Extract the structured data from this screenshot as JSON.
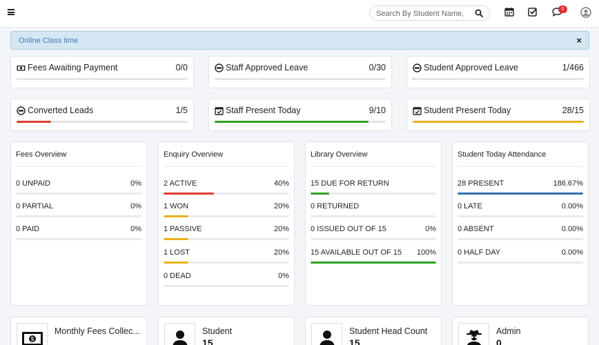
{
  "header": {
    "menu_icon": "hamburger-icon",
    "search_placeholder": "Search By Student Name,",
    "notification_count": "0",
    "icons": [
      "calendar-icon",
      "checkbox-icon",
      "chat-icon",
      "user-avatar-icon"
    ]
  },
  "alert": {
    "text": "Online Class time",
    "close": "×"
  },
  "stats": [
    {
      "label": "Fees Awaiting Payment",
      "value": "0/0",
      "icon": "money-icon",
      "progress": 0,
      "color": "#dd3b32"
    },
    {
      "label": "Staff Approved Leave",
      "value": "0/30",
      "icon": "leave-icon",
      "progress": 0,
      "color": "#2da11f"
    },
    {
      "label": "Student Approved Leave",
      "value": "1/466",
      "icon": "leave-icon",
      "progress": 0.002,
      "color": "#999999"
    },
    {
      "label": "Converted Leads",
      "value": "1/5",
      "icon": "leads-icon",
      "progress": 0.2,
      "color": "#dd3b32"
    },
    {
      "label": "Staff Present Today",
      "value": "9/10",
      "icon": "calendar-check-icon",
      "progress": 0.9,
      "color": "#2da11f"
    },
    {
      "label": "Student Present Today",
      "value": "28/15",
      "icon": "calendar-check-icon",
      "progress": 1.0,
      "color": "#e8b21c"
    }
  ],
  "panels": [
    {
      "title": "Fees Overview",
      "rows": [
        {
          "label": "0 UNPAID",
          "value": "0%",
          "progress": 0,
          "color": "#dd3b32"
        },
        {
          "label": "0 PARTIAL",
          "value": "0%",
          "progress": 0,
          "color": "#e8b21c"
        },
        {
          "label": "0 PAID",
          "value": "0%",
          "progress": 0,
          "color": "#2da11f"
        }
      ]
    },
    {
      "title": "Enquiry Overview",
      "rows": [
        {
          "label": "2 ACTIVE",
          "value": "40%",
          "progress": 0.4,
          "color": "#dd3b32"
        },
        {
          "label": "1 WON",
          "value": "20%",
          "progress": 0.2,
          "color": "#e8b21c"
        },
        {
          "label": "1 PASSIVE",
          "value": "20%",
          "progress": 0.2,
          "color": "#e8b21c"
        },
        {
          "label": "1 LOST",
          "value": "20%",
          "progress": 0.2,
          "color": "#e8b21c"
        },
        {
          "label": "0 DEAD",
          "value": "0%",
          "progress": 0,
          "color": "#e8b21c"
        }
      ]
    },
    {
      "title": "Library Overview",
      "rows": [
        {
          "label": "15 DUE FOR RETURN",
          "value": "",
          "progress": 0.15,
          "color": "#2da11f"
        },
        {
          "label": "0 RETURNED",
          "value": "",
          "progress": 0,
          "color": "#2da11f"
        },
        {
          "label": "0 ISSUED OUT OF 15",
          "value": "0%",
          "progress": 0,
          "color": "#2da11f"
        },
        {
          "label": "15 AVAILABLE OUT OF 15",
          "value": "100%",
          "progress": 1.0,
          "color": "#2da11f"
        }
      ]
    },
    {
      "title": "Student Today Attendance",
      "rows": [
        {
          "label": "28 PRESENT",
          "value": "186.67%",
          "progress": 1.0,
          "color": "#2f6fb3"
        },
        {
          "label": "0 LATE",
          "value": "0.00%",
          "progress": 0,
          "color": "#2f6fb3"
        },
        {
          "label": "0 ABSENT",
          "value": "0.00%",
          "progress": 0,
          "color": "#2f6fb3"
        },
        {
          "label": "0 HALF DAY",
          "value": "0.00%",
          "progress": 0,
          "color": "#2f6fb3"
        }
      ]
    }
  ],
  "info_cards": [
    {
      "label": "Monthly Fees Collec...",
      "value": "",
      "icon": "money-bill-icon"
    },
    {
      "label": "Student",
      "value": "15",
      "icon": "user-icon"
    },
    {
      "label": "Student Head Count",
      "value": "15",
      "icon": "user-icon"
    },
    {
      "label": "Admin",
      "value": "0",
      "icon": "spy-user-icon"
    }
  ]
}
